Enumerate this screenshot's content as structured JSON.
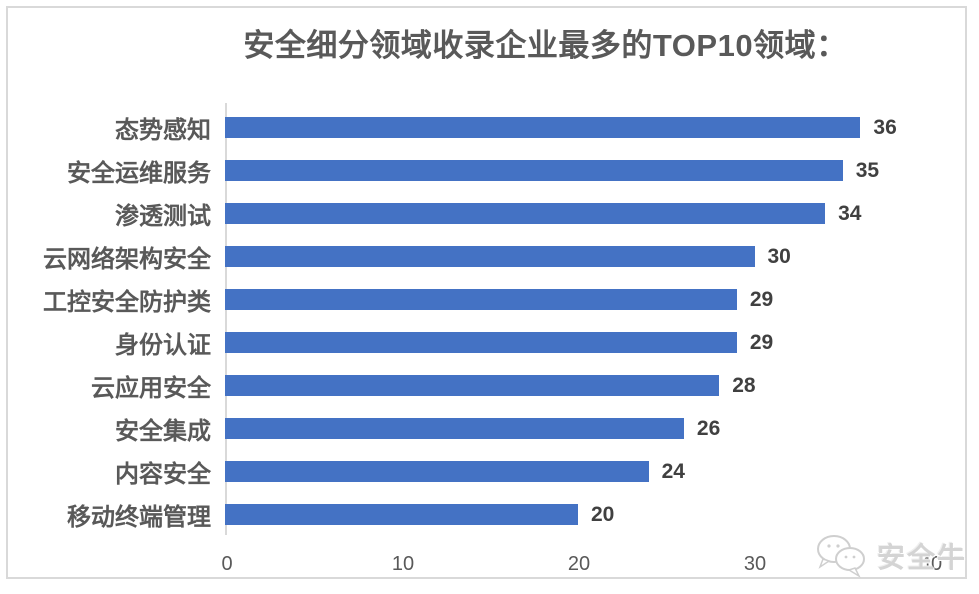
{
  "chart_data": {
    "type": "bar",
    "orientation": "horizontal",
    "title": "安全细分领域收录企业最多的TOP10领域：",
    "categories": [
      "态势感知",
      "安全运维服务",
      "渗透测试",
      "云网络架构安全",
      "工控安全防护类",
      "身份认证",
      "云应用安全",
      "安全集成",
      "内容安全",
      "移动终端管理"
    ],
    "values": [
      36,
      35,
      34,
      30,
      29,
      29,
      28,
      26,
      24,
      20
    ],
    "xlabel": "",
    "ylabel": "",
    "xlim": [
      0,
      40
    ],
    "xticks": [
      0,
      10,
      20,
      30,
      40
    ],
    "grid": false,
    "legend": false,
    "data_labels": true,
    "bar_color": "#4472C4"
  },
  "colors": {
    "bar": "#4472C4",
    "title_text": "#595959",
    "category_text": "#595959",
    "value_text": "#404040",
    "axis_line": "#D9D9D9",
    "frame_border": "#D9D9D9",
    "watermark": "#D4D4D4"
  },
  "watermark": {
    "icon": "chat-bubbles-icon",
    "text": "安全牛"
  }
}
